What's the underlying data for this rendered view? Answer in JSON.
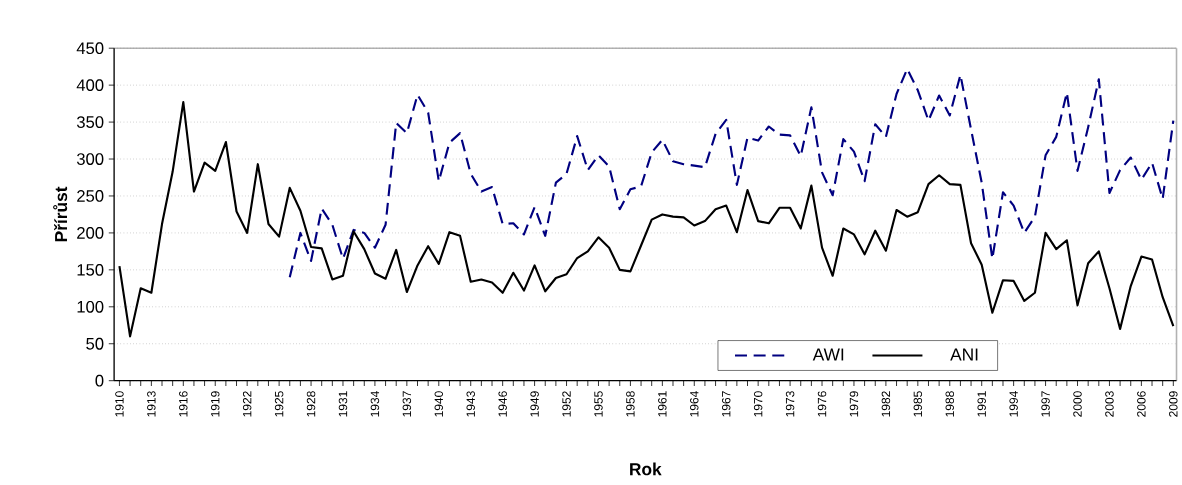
{
  "chart_data": {
    "type": "line",
    "xlabel": "Rok",
    "ylabel": "Přírůst",
    "categories": [
      "1910",
      null,
      null,
      "1913",
      null,
      null,
      "1916",
      null,
      null,
      "1919",
      null,
      null,
      "1922",
      null,
      null,
      "1925",
      null,
      null,
      "1928",
      null,
      null,
      "1931",
      null,
      null,
      "1934",
      null,
      null,
      "1937",
      null,
      null,
      "1940",
      null,
      null,
      "1943",
      null,
      null,
      "1946",
      null,
      null,
      "1949",
      null,
      null,
      "1952",
      null,
      null,
      "1955",
      null,
      null,
      "1958",
      null,
      null,
      "1961",
      null,
      null,
      "1964",
      null,
      null,
      "1967",
      null,
      null,
      "1970",
      null,
      null,
      "1973",
      null,
      null,
      "1976",
      null,
      null,
      "1979",
      null,
      null,
      "1982",
      null,
      null,
      "1985",
      null,
      null,
      "1988",
      null,
      null,
      "1991",
      null,
      null,
      "1994",
      null,
      null,
      "1997",
      null,
      null,
      "2000",
      null,
      null,
      "2003",
      null,
      null,
      "2006",
      null,
      null,
      "2009"
    ],
    "series": [
      {
        "name": "AWI",
        "color": "#000080",
        "line_style": "dashed",
        "values": [
          null,
          null,
          null,
          null,
          null,
          null,
          null,
          null,
          null,
          null,
          null,
          null,
          null,
          null,
          null,
          null,
          140,
          200,
          162,
          233,
          211,
          165,
          204,
          200,
          180,
          211,
          349,
          335,
          387,
          363,
          270,
          322,
          335,
          280,
          256,
          262,
          212,
          213,
          198,
          235,
          196,
          268,
          280,
          331,
          285,
          305,
          290,
          232,
          259,
          263,
          309,
          326,
          297,
          293,
          291,
          289,
          334,
          353,
          265,
          329,
          325,
          344,
          333,
          332,
          304,
          370,
          282,
          251,
          327,
          310,
          270,
          347,
          330,
          388,
          422,
          393,
          352,
          386,
          359,
          414,
          340,
          268,
          165,
          255,
          237,
          200,
          222,
          305,
          330,
          390,
          284,
          343,
          408,
          254,
          285,
          302,
          272,
          295,
          246,
          352
        ]
      },
      {
        "name": "ANI",
        "color": "#000000",
        "line_style": "solid",
        "values": [
          155,
          60,
          125,
          119,
          212,
          283,
          377,
          256,
          295,
          284,
          323,
          229,
          200,
          293,
          212,
          195,
          261,
          230,
          181,
          179,
          137,
          142,
          202,
          178,
          145,
          138,
          177,
          120,
          156,
          182,
          158,
          201,
          196,
          134,
          137,
          133,
          119,
          146,
          122,
          156,
          121,
          139,
          144,
          166,
          175,
          194,
          180,
          150,
          148,
          183,
          218,
          225,
          222,
          221,
          210,
          216,
          232,
          237,
          201,
          258,
          216,
          213,
          234,
          234,
          206,
          264,
          180,
          142,
          206,
          198,
          171,
          203,
          176,
          231,
          222,
          228,
          266,
          278,
          266,
          265,
          186,
          157,
          92,
          136,
          135,
          108,
          119,
          200,
          178,
          190,
          102,
          159,
          175,
          125,
          70,
          128,
          168,
          164,
          113,
          74
        ]
      }
    ],
    "ylim": [
      0,
      450
    ],
    "yticks": [
      0,
      50,
      100,
      150,
      200,
      250,
      300,
      350,
      400,
      450
    ],
    "grid": "y",
    "legend": "bottom",
    "marker": "none"
  }
}
